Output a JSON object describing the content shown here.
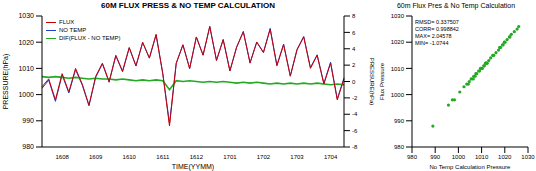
{
  "chart_data": [
    {
      "type": "line",
      "title": "60M FLUX PRESS & NO TEMP CALCULATION",
      "xlabel": "TIME(YYMM)",
      "ylabel": "PRESSURE(hPa)",
      "y2label": "PRESSURE(hPa)",
      "legend": "upper left",
      "categories": [
        null,
        null,
        null,
        "1608",
        null,
        null,
        null,
        null,
        "1609",
        null,
        null,
        null,
        null,
        "1610",
        null,
        null,
        null,
        null,
        "1611",
        null,
        null,
        null,
        null,
        "1612",
        null,
        null,
        null,
        null,
        "1701",
        null,
        null,
        null,
        null,
        "1702",
        null,
        null,
        null,
        null,
        "1703",
        null,
        null,
        null,
        null,
        "1704",
        null,
        null
      ],
      "series": [
        {
          "name": "FLUX",
          "color": "#cc0000",
          "values": [
            1003,
            1006,
            998,
            1008,
            1001,
            1010,
            1004,
            996,
            1007,
            1012,
            1005,
            1015,
            1009,
            1018,
            1011,
            1020,
            1014,
            1023,
            1008,
            988,
            1012,
            1019,
            1010,
            1022,
            1015,
            1026,
            1013,
            1021,
            1009,
            1018,
            1024,
            1012,
            1020,
            1016,
            1025,
            1011,
            1019,
            1007,
            1017,
            1022,
            1010,
            1015,
            1004,
            1012,
            998,
            1006
          ]
        },
        {
          "name": "NO TEMP",
          "color": "#1f3fcc",
          "values": [
            1002.4,
            1005.5,
            997.4,
            1007.5,
            1000.6,
            1009.5,
            1003.6,
            995.7,
            1006.6,
            1011.7,
            1004.7,
            1014.8,
            1008.7,
            1017.8,
            1010.9,
            1019.8,
            1013.9,
            1022.8,
            1007.9,
            989.0,
            1011.9,
            1019.0,
            1009.9,
            1022.0,
            1015.1,
            1026.0,
            1013.1,
            1021.0,
            1009.1,
            1018.2,
            1024.1,
            1012.2,
            1020.1,
            1016.2,
            1025.3,
            1011.2,
            1019.3,
            1007.2,
            1017.3,
            1022.2,
            1010.3,
            1015.2,
            1004.3,
            1012.4,
            998.3,
            1006.4
          ]
        },
        {
          "name": "DIF(FLUX - NO TEMP)",
          "color": "#22aa22",
          "axis": "y2",
          "values": [
            0.6,
            0.5,
            0.6,
            0.5,
            0.4,
            0.5,
            0.4,
            0.3,
            0.4,
            0.3,
            0.3,
            0.2,
            0.3,
            0.2,
            0.1,
            0.2,
            0.1,
            0.2,
            0.1,
            -1.0,
            0.1,
            0.0,
            0.1,
            0.0,
            -0.1,
            0.0,
            -0.1,
            0.0,
            -0.1,
            -0.2,
            -0.1,
            -0.2,
            -0.1,
            -0.2,
            -0.3,
            -0.2,
            -0.3,
            -0.2,
            -0.3,
            -0.2,
            -0.3,
            -0.2,
            -0.3,
            -0.4,
            -0.3,
            -0.4
          ]
        }
      ],
      "ylim": [
        980,
        1030
      ],
      "yticks": [
        980,
        990,
        1000,
        1010,
        1020,
        1030
      ],
      "y2lim": [
        -8,
        8
      ],
      "y2ticks": [
        -8,
        -6,
        -4,
        -2,
        0,
        2,
        4,
        6,
        8
      ]
    },
    {
      "type": "scatter",
      "title": "60m Flux Pres & No Temp Calculation",
      "xlabel": "No Temp Calculation Pressure",
      "ylabel": "Flux Pressure",
      "color": "#22aa22",
      "x": [
        1002.4,
        1005.5,
        997.4,
        1007.5,
        1000.6,
        1009.5,
        1003.6,
        995.7,
        1006.6,
        1011.7,
        1004.7,
        1014.8,
        1008.7,
        1017.8,
        1010.9,
        1019.8,
        1013.9,
        1022.8,
        1007.9,
        989.0,
        1011.9,
        1019.0,
        1009.9,
        1022.0,
        1015.1,
        1026.0,
        1013.1,
        1021.0,
        1009.1,
        1018.2,
        1024.1,
        1012.2,
        1020.1,
        1016.2,
        1025.3,
        1011.2,
        1019.3,
        1007.2,
        1017.3,
        1022.2,
        1010.3,
        1015.2,
        1004.3,
        1012.4,
        998.3,
        1006.4
      ],
      "y": [
        1003,
        1006,
        998,
        1008,
        1001,
        1010,
        1004,
        996,
        1007,
        1012,
        1005,
        1015,
        1009,
        1018,
        1011,
        1020,
        1014,
        1023,
        1008,
        988,
        1012,
        1019,
        1010,
        1022,
        1015,
        1026,
        1013,
        1021,
        1009,
        1018,
        1024,
        1012,
        1020,
        1016,
        1025,
        1011,
        1019,
        1007,
        1017,
        1022,
        1010,
        1015,
        1004,
        1012,
        998,
        1006
      ],
      "xlim": [
        980,
        1030
      ],
      "xticks": [
        980,
        990,
        1000,
        1010,
        1020,
        1030
      ],
      "ylim": [
        980,
        1030
      ],
      "yticks": [
        980,
        990,
        1000,
        1010,
        1020,
        1030
      ],
      "annotations": [
        "RMSD= 0.337507",
        "CORR= 0.998842",
        "MAX= 2.04578",
        "MIN= -1.0744"
      ]
    }
  ]
}
